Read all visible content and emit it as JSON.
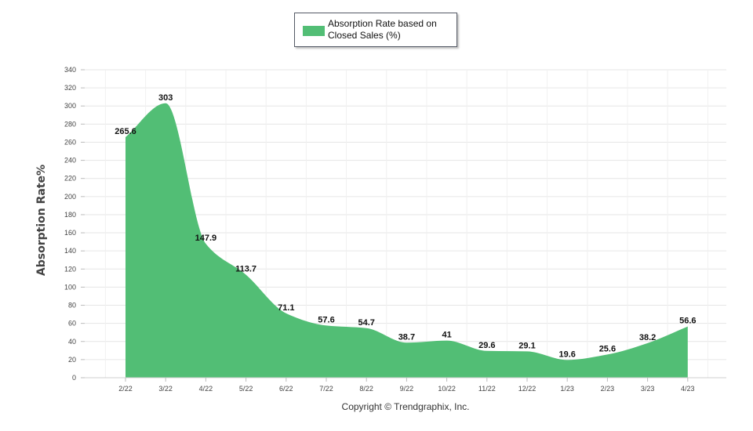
{
  "chart_data": {
    "type": "area",
    "categories": [
      "2/22",
      "3/22",
      "4/22",
      "5/22",
      "6/22",
      "7/22",
      "8/22",
      "9/22",
      "10/22",
      "11/22",
      "12/22",
      "1/23",
      "2/23",
      "3/23",
      "4/23"
    ],
    "series": [
      {
        "name": "Absorption Rate based on Closed Sales (%)",
        "values": [
          265.6,
          303,
          147.9,
          113.7,
          71.1,
          57.6,
          54.7,
          38.7,
          41,
          29.6,
          29.1,
          19.6,
          25.6,
          38.2,
          56.6
        ],
        "color": "#52be75"
      }
    ],
    "data_labels": [
      "265.6",
      "303",
      "147.9",
      "113.7",
      "71.1",
      "57.6",
      "54.7",
      "38.7",
      "41",
      "29.6",
      "29.1",
      "19.6",
      "25.6",
      "38.2",
      "56.6"
    ],
    "ylabel": "Absorption Rate%",
    "xlabel": "",
    "ylim": [
      0,
      340
    ],
    "yticks": [
      0,
      20,
      40,
      60,
      80,
      100,
      120,
      140,
      160,
      180,
      200,
      220,
      240,
      260,
      280,
      300,
      320,
      340
    ],
    "grid": true,
    "legend_position": "top-center",
    "footer": "Copyright © Trendgraphix, Inc."
  }
}
